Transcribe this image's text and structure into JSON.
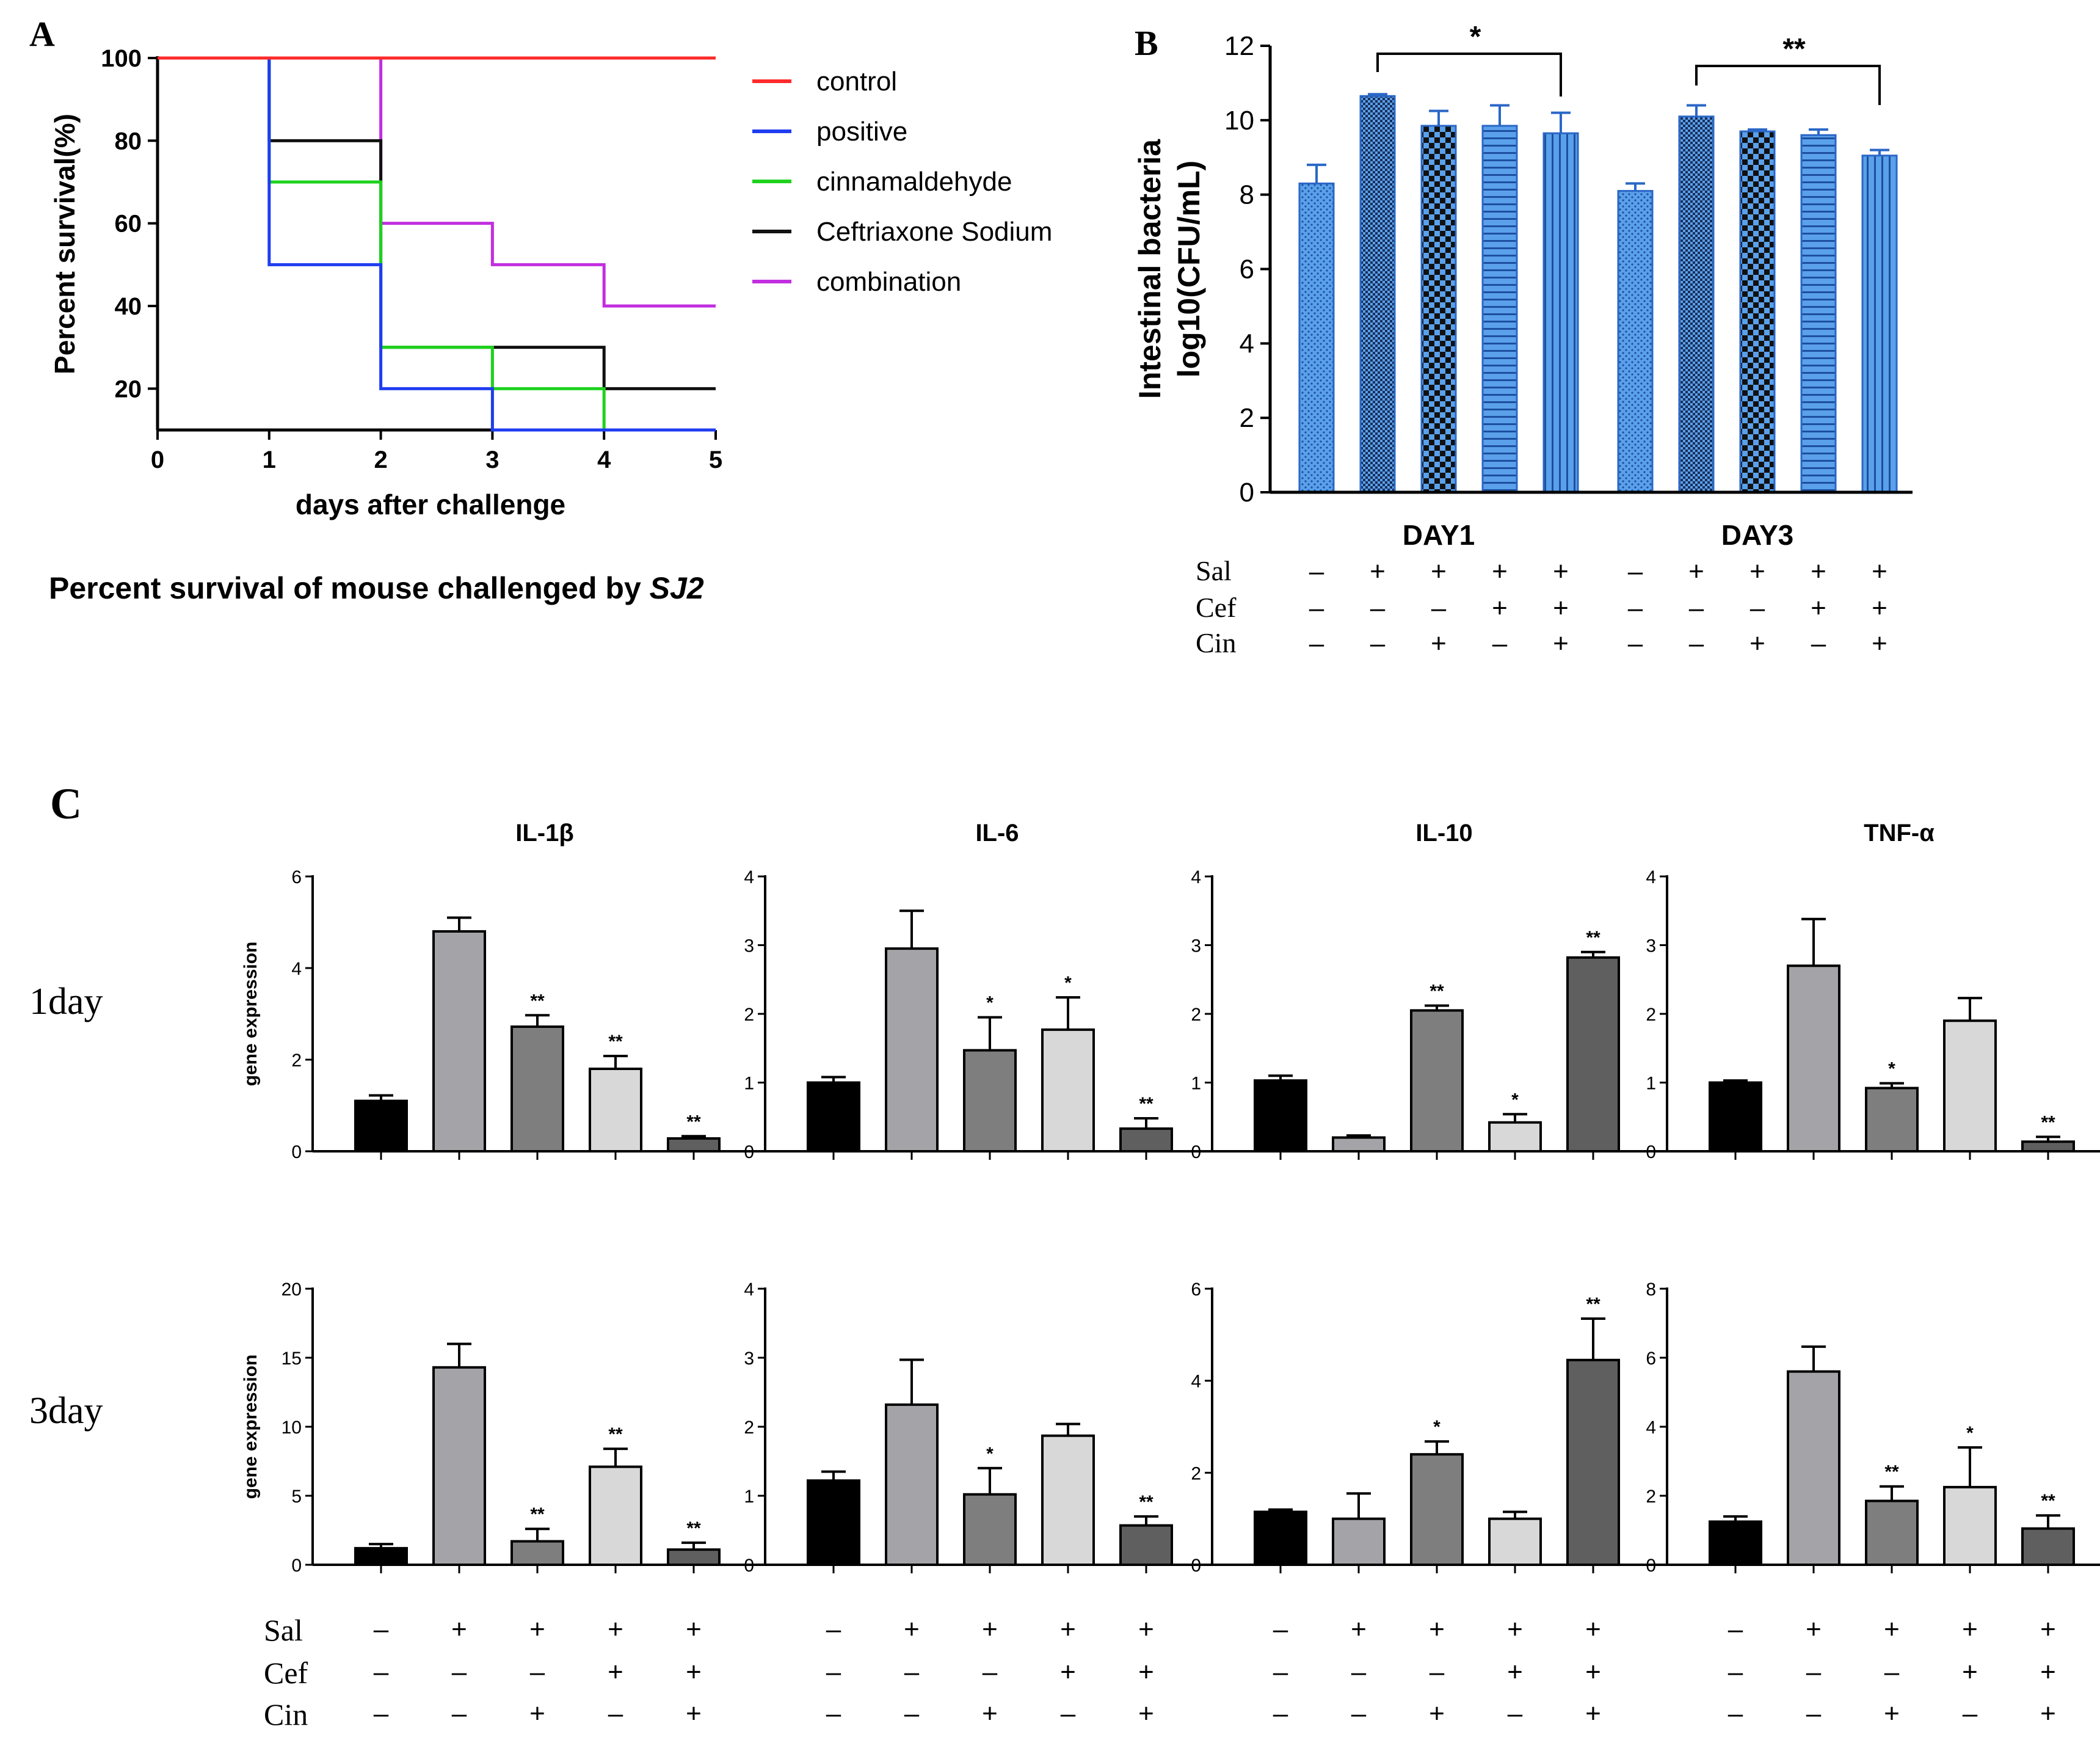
{
  "panels": {
    "A": {
      "letter": "A"
    },
    "B": {
      "letter": "B"
    },
    "C": {
      "letter": "C"
    }
  },
  "caption": {
    "prefix": "Percent survival of mouse challenged by ",
    "italic": "SJ2"
  },
  "treatment_rows": [
    "Sal",
    "Cef",
    "Cin"
  ],
  "treatment_signs": {
    "Sal": [
      "–",
      "+",
      "+",
      "+",
      "+"
    ],
    "Cef": [
      "–",
      "–",
      "–",
      "+",
      "+"
    ],
    "Cin": [
      "–",
      "–",
      "+",
      "–",
      "+"
    ]
  },
  "row_labels": {
    "day1": "1day",
    "day3": "3day"
  },
  "colors": {
    "control": "#ff2a2a",
    "positive": "#1f3df0",
    "cinnamaldehyde": "#1ed21e",
    "ceftriaxone": "#111111",
    "combination": "#c22ee0",
    "barBlue": "#5aa0ea",
    "barBlueDark": "#2860b8"
  },
  "chart_data": [
    {
      "id": "A",
      "type": "line",
      "subtype": "step",
      "title": "Percent survival of mouse challenged by SJ2",
      "xlabel": "days after challenge",
      "ylabel": "Percent survival(%)",
      "xlim": [
        0,
        5
      ],
      "ylim": [
        10,
        100
      ],
      "xticks": [
        "0",
        "1",
        "2",
        "3",
        "4",
        "5"
      ],
      "yticks": [
        "20",
        "40",
        "60",
        "80",
        "100"
      ],
      "legend_position": "right",
      "series": [
        {
          "name": "control",
          "color": "#ff2a2a",
          "x": [
            0,
            5
          ],
          "y": [
            100,
            100
          ]
        },
        {
          "name": "positive",
          "color": "#1f3df0",
          "x": [
            0,
            1,
            2,
            3,
            5
          ],
          "y": [
            100,
            50,
            20,
            10,
            10
          ]
        },
        {
          "name": "cinnamaldehyde",
          "color": "#1ed21e",
          "x": [
            0,
            1,
            2,
            3,
            4,
            5
          ],
          "y": [
            100,
            70,
            30,
            20,
            10,
            10
          ]
        },
        {
          "name": "Ceftriaxone Sodium",
          "color": "#111111",
          "x": [
            0,
            1,
            2,
            4,
            5
          ],
          "y": [
            100,
            80,
            30,
            20,
            20
          ]
        },
        {
          "name": "combination",
          "color": "#c22ee0",
          "x": [
            0,
            2,
            3,
            4,
            5
          ],
          "y": [
            100,
            60,
            50,
            40,
            40
          ]
        }
      ]
    },
    {
      "id": "B",
      "type": "bar",
      "ylabel_line1": "Intestinal bacteria",
      "ylabel_line2": "log10(CFU/mL)",
      "ylim": [
        0,
        12
      ],
      "yticks": [
        "0",
        "2",
        "4",
        "6",
        "8",
        "10",
        "12"
      ],
      "categories": [
        "DAY1",
        "DAY3"
      ],
      "series": [
        {
          "name": "group1",
          "pattern": "dots",
          "values": [
            8.3,
            8.1
          ],
          "errors": [
            0.5,
            0.2
          ]
        },
        {
          "name": "group2",
          "pattern": "fine-check",
          "values": [
            10.65,
            10.1
          ],
          "errors": [
            0.05,
            0.3
          ]
        },
        {
          "name": "group3",
          "pattern": "check",
          "values": [
            9.85,
            9.7
          ],
          "errors": [
            0.4,
            0.05
          ]
        },
        {
          "name": "group4",
          "pattern": "hlines",
          "values": [
            9.85,
            9.6
          ],
          "errors": [
            0.55,
            0.15
          ]
        },
        {
          "name": "group5",
          "pattern": "vlines",
          "values": [
            9.65,
            9.05
          ],
          "errors": [
            0.55,
            0.15
          ]
        }
      ],
      "significance": [
        {
          "category": "DAY1",
          "from_bar": 2,
          "to_bar": 5,
          "label": "*"
        },
        {
          "category": "DAY3",
          "from_bar": 2,
          "to_bar": 5,
          "label": "**"
        }
      ]
    },
    {
      "id": "C-1day-IL-1β",
      "type": "bar",
      "title": "IL-1β",
      "row": "1day",
      "ylabel": "gene expression",
      "ylim": [
        0,
        6
      ],
      "yticks": [
        "0",
        "2",
        "4",
        "6"
      ],
      "values": [
        1.1,
        4.8,
        2.72,
        1.8,
        0.28
      ],
      "errors": [
        0.12,
        0.3,
        0.25,
        0.28,
        0.05
      ],
      "sig": [
        "",
        "",
        "**",
        "**",
        "**"
      ]
    },
    {
      "id": "C-1day-IL-6",
      "type": "bar",
      "title": "IL-6",
      "row": "1day",
      "ylabel": "",
      "ylim": [
        0,
        4
      ],
      "yticks": [
        "0",
        "1",
        "2",
        "3",
        "4"
      ],
      "values": [
        1.0,
        2.95,
        1.47,
        1.77,
        0.33
      ],
      "errors": [
        0.08,
        0.55,
        0.48,
        0.47,
        0.15
      ],
      "sig": [
        "",
        "",
        "*",
        "*",
        "**"
      ]
    },
    {
      "id": "C-1day-IL-10",
      "type": "bar",
      "title": "IL-10",
      "row": "1day",
      "ylabel": "",
      "ylim": [
        0,
        4
      ],
      "yticks": [
        "0",
        "1",
        "2",
        "3",
        "4"
      ],
      "values": [
        1.03,
        0.2,
        2.05,
        0.42,
        2.82
      ],
      "errors": [
        0.07,
        0.03,
        0.07,
        0.12,
        0.08
      ],
      "sig": [
        "",
        "",
        "**",
        "*",
        "**"
      ]
    },
    {
      "id": "C-1day-TNF-α",
      "type": "bar",
      "title": "TNF-α",
      "row": "1day",
      "ylabel": "",
      "ylim": [
        0,
        4
      ],
      "yticks": [
        "0",
        "1",
        "2",
        "3",
        "4"
      ],
      "values": [
        1.0,
        2.7,
        0.92,
        1.9,
        0.14
      ],
      "errors": [
        0.03,
        0.68,
        0.07,
        0.33,
        0.07
      ],
      "sig": [
        "",
        "",
        "*",
        "",
        "**"
      ]
    },
    {
      "id": "C-3day-IL-1β",
      "type": "bar",
      "title": "",
      "row": "3day",
      "ylabel": "gene expression",
      "ylim": [
        0,
        20
      ],
      "yticks": [
        "0",
        "5",
        "10",
        "15",
        "20"
      ],
      "values": [
        1.2,
        14.3,
        1.7,
        7.1,
        1.1
      ],
      "errors": [
        0.3,
        1.7,
        0.9,
        1.3,
        0.5
      ],
      "sig": [
        "",
        "",
        "**",
        "**",
        "**"
      ]
    },
    {
      "id": "C-3day-IL-6",
      "type": "bar",
      "title": "",
      "row": "3day",
      "ylabel": "",
      "ylim": [
        0,
        4
      ],
      "yticks": [
        "0",
        "1",
        "2",
        "3",
        "4"
      ],
      "values": [
        1.22,
        2.32,
        1.02,
        1.87,
        0.57
      ],
      "errors": [
        0.13,
        0.65,
        0.38,
        0.17,
        0.13
      ],
      "sig": [
        "",
        "",
        "*",
        "",
        "**"
      ]
    },
    {
      "id": "C-3day-IL-10",
      "type": "bar",
      "title": "",
      "row": "3day",
      "ylabel": "",
      "ylim": [
        0,
        6
      ],
      "yticks": [
        "0",
        "2",
        "4",
        "6"
      ],
      "values": [
        1.15,
        1.0,
        2.4,
        1.0,
        4.45
      ],
      "errors": [
        0.05,
        0.55,
        0.28,
        0.15,
        0.9
      ],
      "sig": [
        "",
        "",
        "*",
        "",
        "**"
      ]
    },
    {
      "id": "C-3day-TNF-α",
      "type": "bar",
      "title": "",
      "row": "3day",
      "ylabel": "",
      "ylim": [
        0,
        8
      ],
      "yticks": [
        "0",
        "2",
        "4",
        "6",
        "8"
      ],
      "values": [
        1.25,
        5.6,
        1.85,
        2.25,
        1.05
      ],
      "errors": [
        0.15,
        0.72,
        0.42,
        1.15,
        0.38
      ],
      "sig": [
        "",
        "",
        "**",
        "*",
        "**"
      ]
    }
  ]
}
